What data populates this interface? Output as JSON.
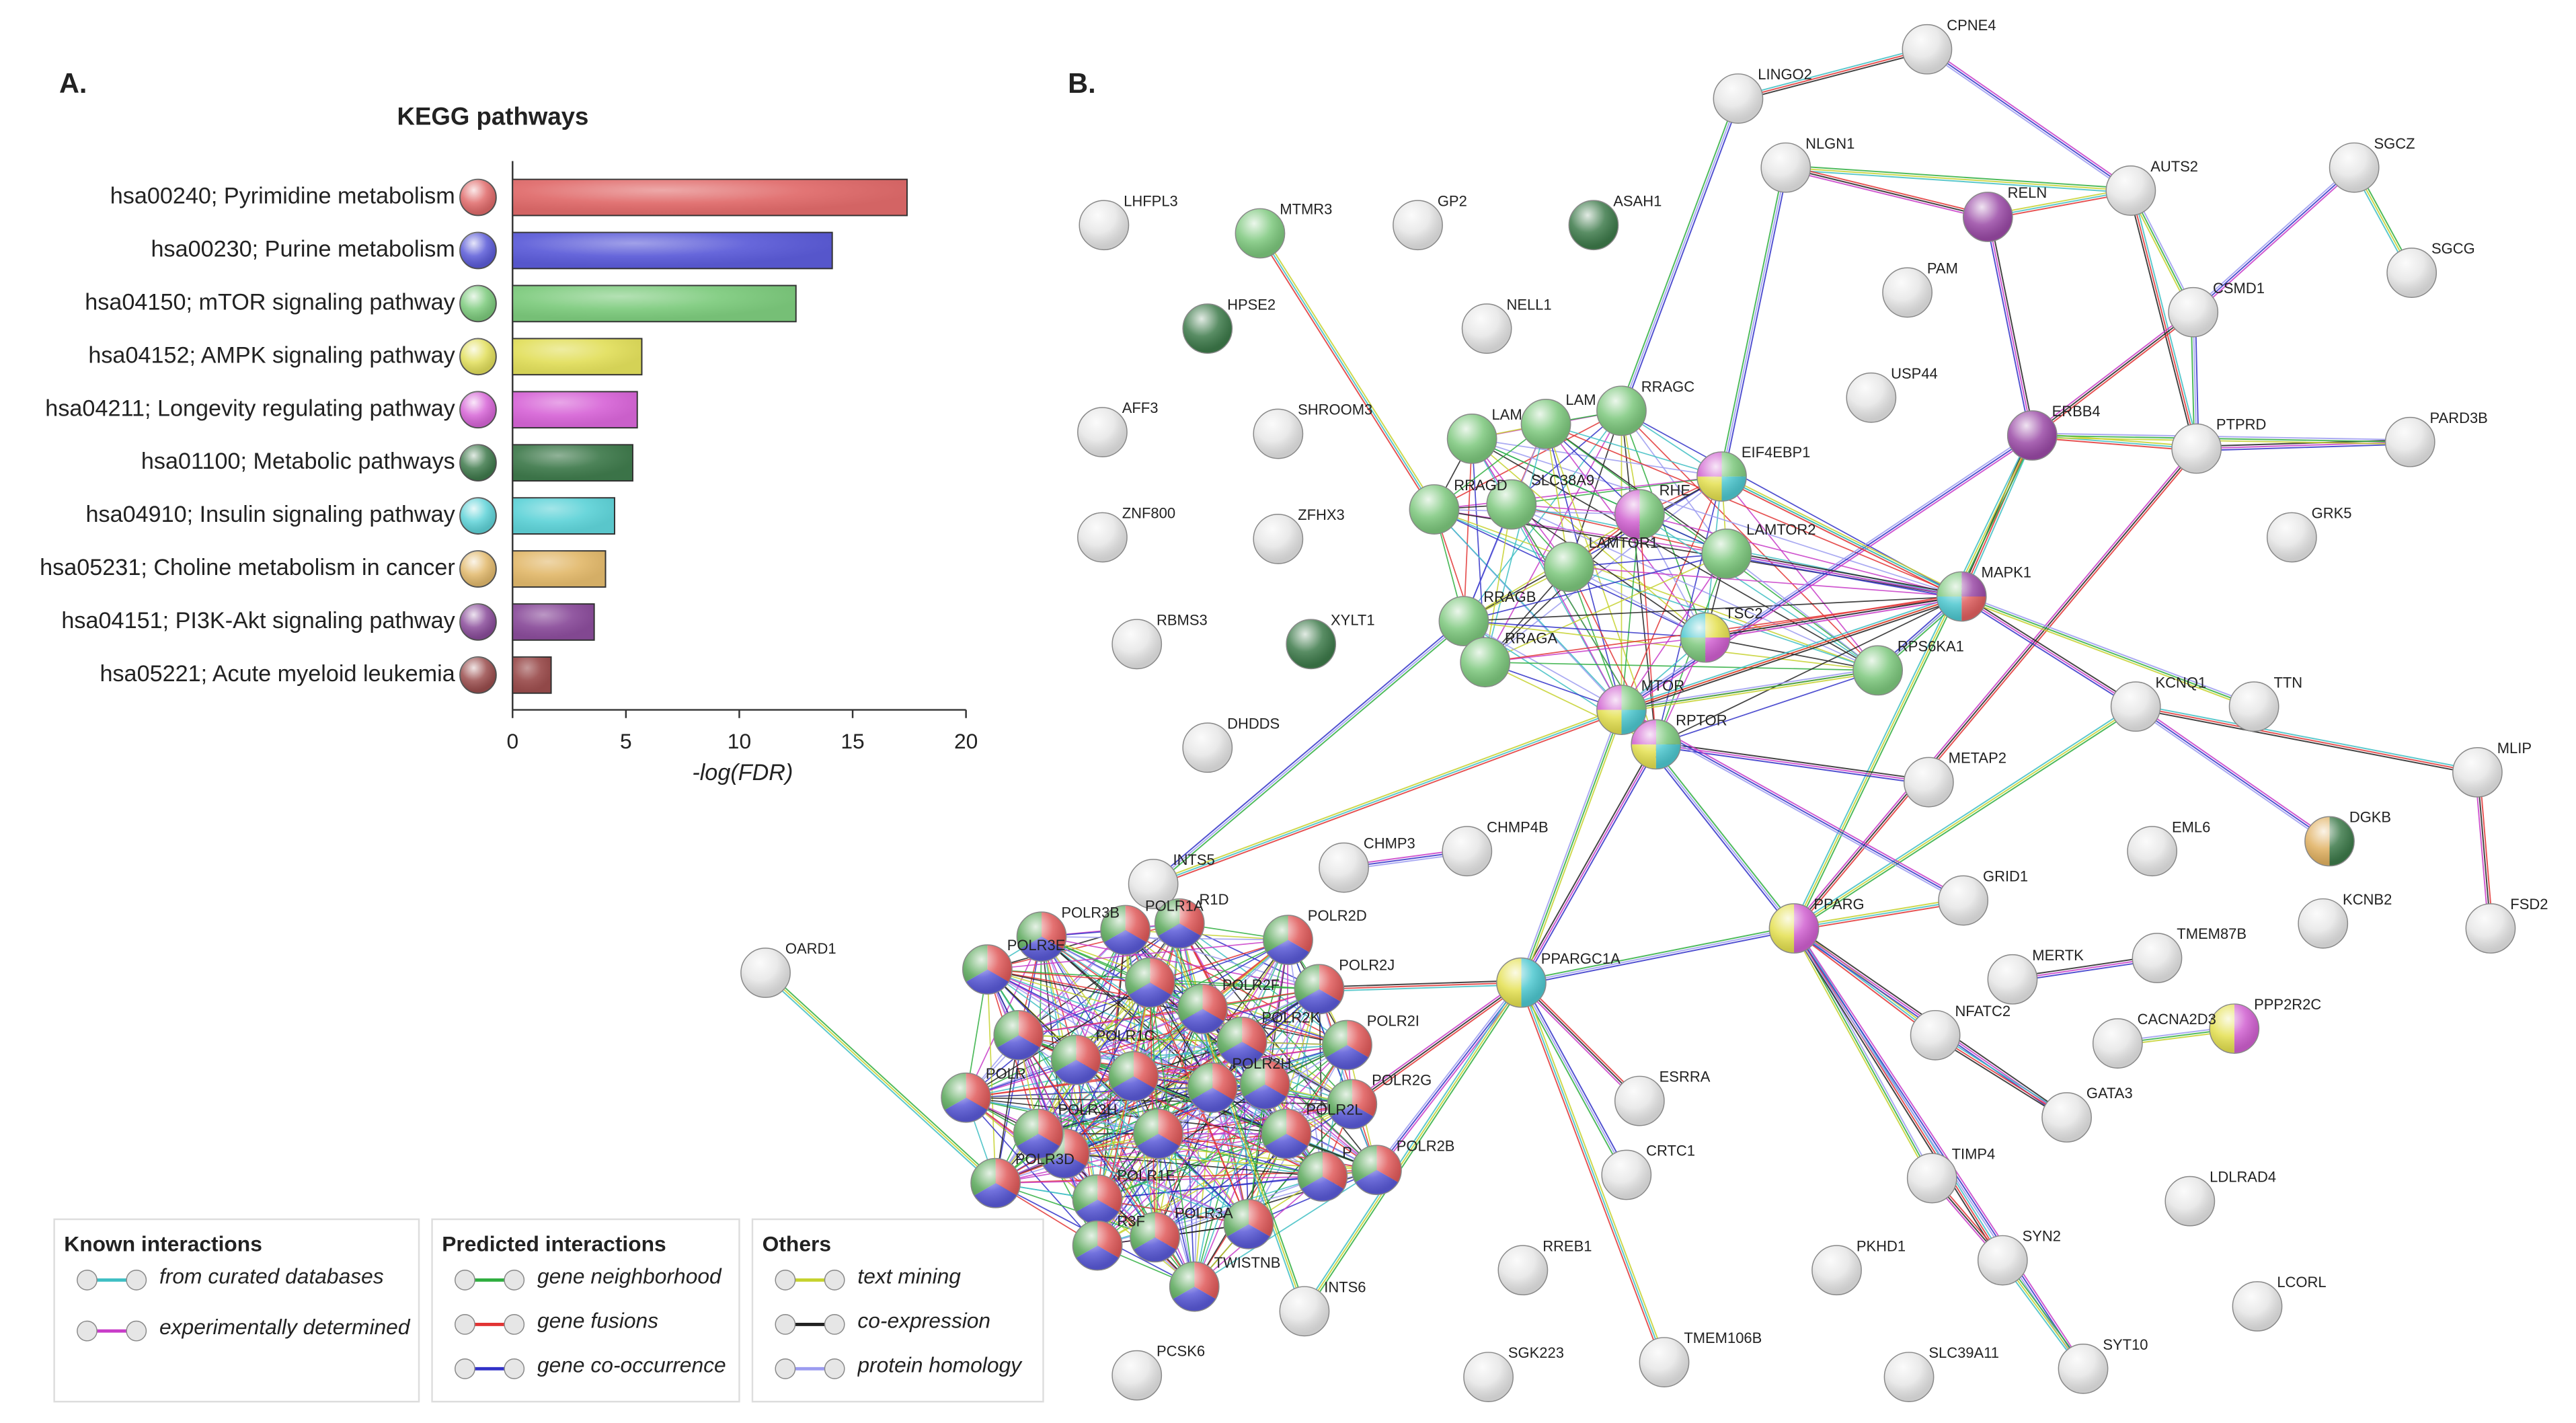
{
  "panel_a_label": "A.",
  "panel_b_label": "B.",
  "chart_data": {
    "type": "bar",
    "orientation": "horizontal",
    "title": "KEGG pathways",
    "categories": [
      "hsa00240; Pyrimidine metabolism",
      "hsa00230; Purine metabolism",
      "hsa04150; mTOR signaling pathway",
      "hsa04152; AMPK signaling pathway",
      "hsa04211; Longevity regulating pathway",
      "hsa01100; Metabolic pathways",
      "hsa04910; Insulin signaling pathway",
      "hsa05231; Choline metabolism in cancer",
      "hsa04151; PI3K-Akt signaling pathway",
      "hsa05221; Acute myeloid leukemia"
    ],
    "values": [
      17.4,
      14.1,
      12.5,
      5.7,
      5.5,
      5.3,
      4.5,
      4.1,
      3.6,
      1.7
    ],
    "colors": [
      "#e06a6a",
      "#5b5bd8",
      "#7dcb7d",
      "#e2df5c",
      "#d765d7",
      "#3f7a4c",
      "#5fd3d8",
      "#e2b96c",
      "#8a4c9a",
      "#9a4d4d"
    ],
    "xlabel": "-log(FDR)",
    "xlim": [
      0,
      20
    ],
    "xticks": [
      0,
      5,
      10,
      15,
      20
    ]
  },
  "network": {
    "nodes": [
      {
        "label": "LINGO2"
      },
      {
        "label": "CPNE4"
      },
      {
        "label": "NLGN1"
      },
      {
        "label": "RELN"
      },
      {
        "label": "AUTS2"
      },
      {
        "label": "SGCZ"
      },
      {
        "label": "SGCG"
      },
      {
        "label": "CSMD1"
      },
      {
        "label": "LHFPL3"
      },
      {
        "label": "MTMR3"
      },
      {
        "label": "GP2"
      },
      {
        "label": "ASAH1"
      },
      {
        "label": "PAM"
      },
      {
        "label": "HPSE2"
      },
      {
        "label": "NELL1"
      },
      {
        "label": "USP44"
      },
      {
        "label": "ERBB4"
      },
      {
        "label": "PTPRD"
      },
      {
        "label": "PARD3B"
      },
      {
        "label": "AFF3"
      },
      {
        "label": "SHROOM3"
      },
      {
        "label": "ZNF800"
      },
      {
        "label": "ZFHX3"
      },
      {
        "label": "GRK5"
      },
      {
        "label": "RBMS3"
      },
      {
        "label": "XYLT1"
      },
      {
        "label": "KCNQ1"
      },
      {
        "label": "TTN"
      },
      {
        "label": "MLIP"
      },
      {
        "label": "DHDDS"
      },
      {
        "label": "METAP2"
      },
      {
        "label": "EML6"
      },
      {
        "label": "DGKB"
      },
      {
        "label": "GRID1"
      },
      {
        "label": "PPARG"
      },
      {
        "label": "KCNB2"
      },
      {
        "label": "FSD2"
      },
      {
        "label": "CHMP3"
      },
      {
        "label": "CHMP4B"
      },
      {
        "label": "OARD1"
      },
      {
        "label": "PPARGC1A"
      },
      {
        "label": "MERTK"
      },
      {
        "label": "TMEM87B"
      },
      {
        "label": "NFATC2"
      },
      {
        "label": "CACNA2D3"
      },
      {
        "label": "PPP2R2C"
      },
      {
        "label": "ESRRA"
      },
      {
        "label": "GATA3"
      },
      {
        "label": "CRTC1"
      },
      {
        "label": "TIMP4"
      },
      {
        "label": "LDLRAD4"
      },
      {
        "label": "RREB1"
      },
      {
        "label": "PKHD1"
      },
      {
        "label": "SYN2"
      },
      {
        "label": "LCORL"
      },
      {
        "label": "PCSK6"
      },
      {
        "label": "SGK223"
      },
      {
        "label": "TMEM106B"
      },
      {
        "label": "SLC39A11"
      },
      {
        "label": "SYT10"
      },
      {
        "label": "RRAGC"
      },
      {
        "label": "EIF4EBP1"
      },
      {
        "label": "LAM"
      },
      {
        "label": "LAM"
      },
      {
        "label": "RRAGD"
      },
      {
        "label": "SLC38A9"
      },
      {
        "label": "RHE"
      },
      {
        "label": "LAMTOR1"
      },
      {
        "label": "LAMTOR2"
      },
      {
        "label": "RRAGB"
      },
      {
        "label": "RRAGA"
      },
      {
        "label": "TSC2"
      },
      {
        "label": "RPS6KA1"
      },
      {
        "label": "MAPK1"
      },
      {
        "label": "MTOR"
      },
      {
        "label": "RPTOR"
      },
      {
        "label": "INTS5"
      },
      {
        "label": "R1D"
      },
      {
        "label": "POLR1A"
      },
      {
        "label": "POLR3B"
      },
      {
        "label": "POLR2D"
      },
      {
        "label": "POLR3E"
      },
      {
        "label": "POLR2J"
      },
      {
        "label": "POLR2F"
      },
      {
        "label": "POLR1C"
      },
      {
        "label": "POLR2K"
      },
      {
        "label": "POLR2I"
      },
      {
        "label": "POLR2H"
      },
      {
        "label": "POLR2G"
      },
      {
        "label": "POLR2L"
      },
      {
        "label": "POLR"
      },
      {
        "label": "POLR3H"
      },
      {
        "label": "POLR2B"
      },
      {
        "label": "POLR3D"
      },
      {
        "label": "POLR1E"
      },
      {
        "label": "P"
      },
      {
        "label": "POLR3A"
      },
      {
        "label": "R3F"
      },
      {
        "label": "TWISTNB"
      },
      {
        "label": "INTS6"
      }
    ]
  },
  "legend": {
    "groups": [
      {
        "title": "Known interactions",
        "items": [
          {
            "label": "from curated databases",
            "color": "#3fbfc4"
          },
          {
            "label": "experimentally determined",
            "color": "#c83cc8"
          }
        ]
      },
      {
        "title": "Predicted interactions",
        "items": [
          {
            "label": "gene neighborhood",
            "color": "#2fae3f"
          },
          {
            "label": "gene fusions",
            "color": "#e23434"
          },
          {
            "label": "gene co-occurrence",
            "color": "#3232c8"
          }
        ]
      },
      {
        "title": "Others",
        "items": [
          {
            "label": "text mining",
            "color": "#c6d22e"
          },
          {
            "label": "co-expression",
            "color": "#222222"
          },
          {
            "label": "protein homology",
            "color": "#9c9cf0"
          }
        ]
      }
    ]
  }
}
